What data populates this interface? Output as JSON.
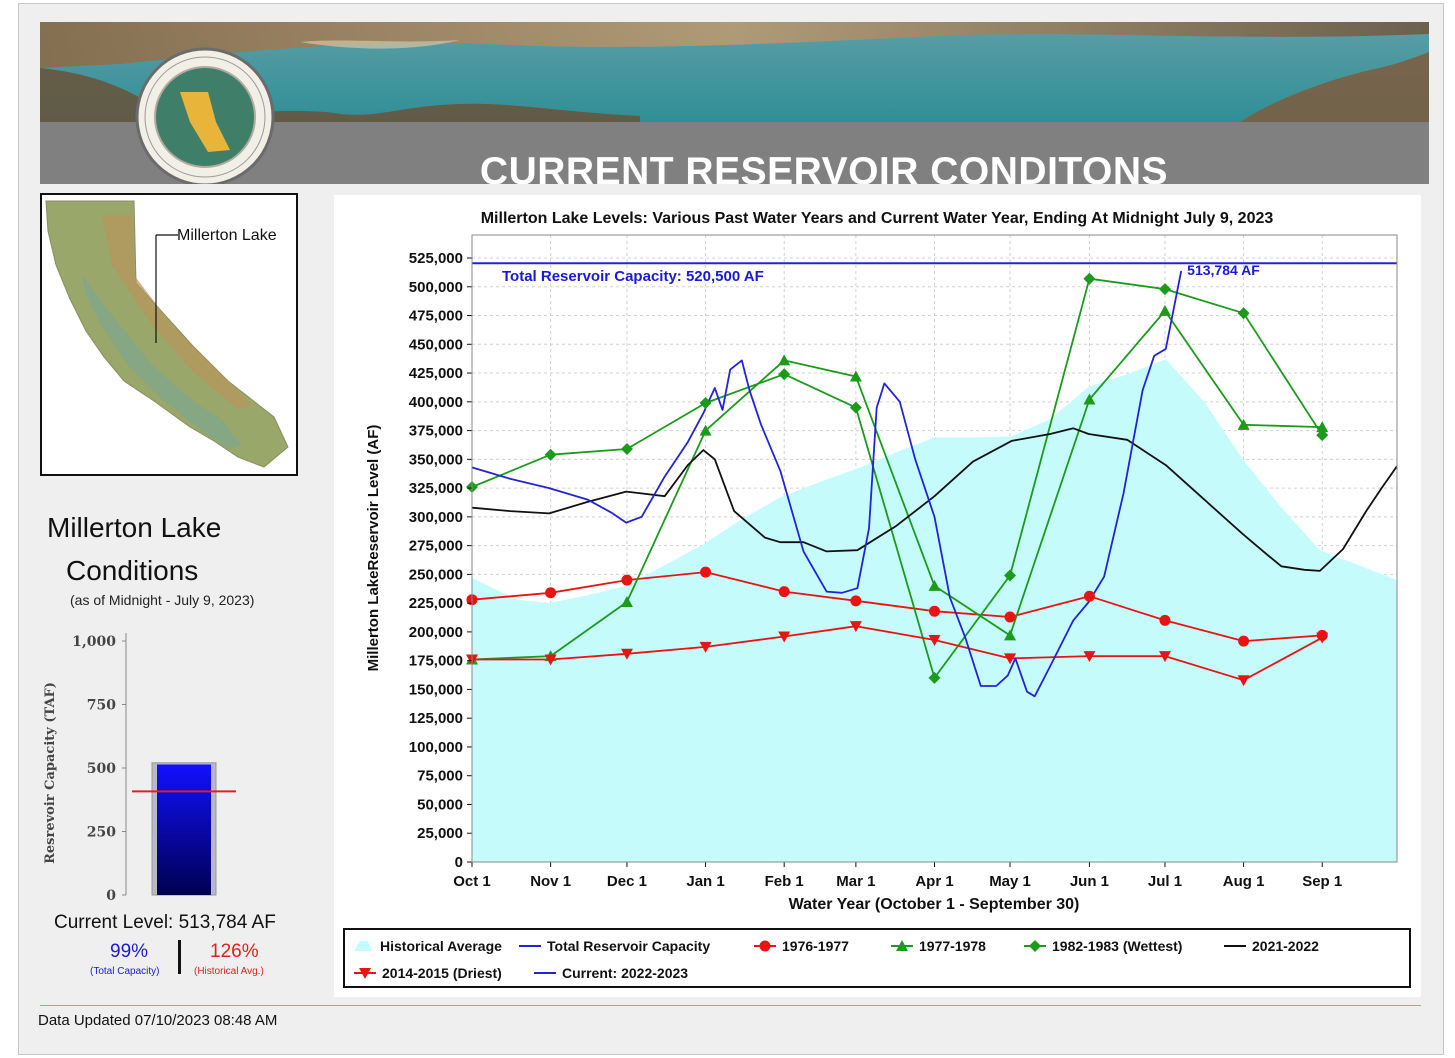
{
  "banner": {
    "title": "CURRENT RESERVOIR CONDITONS",
    "seal": "department-of-water-resources-seal"
  },
  "map": {
    "label": "Millerton Lake"
  },
  "conditions": {
    "title_line1": "Millerton Lake",
    "title_line2": "Conditions",
    "as_of": "(as of Midnight - July 9, 2023)",
    "gauge": {
      "ylabel": "Resrevoir Capacity (TAF)",
      "ticks": [
        "0",
        "250",
        "500",
        "750",
        "1,000"
      ],
      "tick_values": [
        0,
        250,
        500,
        750,
        1000
      ],
      "capacity_taf": 520.5,
      "current_taf": 513.784,
      "historical_avg_taf": 408
    },
    "current_level": "Current Level: 513,784 AF",
    "pct_total": "99%",
    "pct_total_label": "(Total Capacity)",
    "pct_hist": "126%",
    "pct_hist_label": "(Historical Avg.)"
  },
  "footer": {
    "updated": "Data Updated 07/10/2023 08:48 AM"
  },
  "chart_data": {
    "type": "line",
    "title": "Millerton Lake Levels: Various Past Water Years and Current Water Year, Ending At Midnight July 9, 2023",
    "xlabel": "Water Year (October 1 - September 30)",
    "ylabel": "Millerton LakeReservoir Level (AF)",
    "ylim": [
      0,
      545000
    ],
    "xlim": [
      0,
      12
    ],
    "x_tick_labels": [
      "Oct 1",
      "Nov 1",
      "Dec 1",
      "Jan 1",
      "Feb 1",
      "Mar 1",
      "Apr 1",
      "May 1",
      "Jun 1",
      "Jul 1",
      "Aug 1",
      "Sep 1"
    ],
    "x_tick_positions": [
      0,
      1.02,
      2.01,
      3.03,
      4.05,
      4.98,
      6.0,
      6.98,
      8.01,
      8.99,
      10.01,
      11.03
    ],
    "y_tick_labels": [
      "0",
      "25,000",
      "50,000",
      "75,000",
      "100,000",
      "125,000",
      "150,000",
      "175,000",
      "200,000",
      "225,000",
      "250,000",
      "275,000",
      "300,000",
      "325,000",
      "350,000",
      "375,000",
      "400,000",
      "425,000",
      "450,000",
      "475,000",
      "500,000",
      "525,000"
    ],
    "y_tick_values": [
      0,
      25000,
      50000,
      75000,
      100000,
      125000,
      150000,
      175000,
      200000,
      225000,
      250000,
      275000,
      300000,
      325000,
      350000,
      375000,
      400000,
      425000,
      450000,
      475000,
      500000,
      525000
    ],
    "grid": true,
    "legend_position": "bottom",
    "capacity": {
      "value": 520500,
      "label": "Total Reservoir Capacity: 520,500 AF"
    },
    "current_annotation": "513,784 AF",
    "series": [
      {
        "name": "Historical Average",
        "style": "area",
        "color": "#c6fbfb",
        "x": [
          0,
          0.3,
          0.6,
          1.0,
          1.5,
          2.0,
          2.5,
          3.0,
          3.5,
          4.0,
          4.5,
          5.0,
          5.5,
          6.0,
          6.5,
          7.0,
          7.5,
          8.0,
          8.5,
          9.0,
          9.5,
          10.0,
          10.5,
          11.0,
          11.5,
          12.0
        ],
        "y": [
          247000,
          237000,
          228000,
          225000,
          232000,
          240000,
          258000,
          276000,
          298000,
          317000,
          330000,
          342000,
          356000,
          369000,
          369000,
          370000,
          385000,
          413000,
          424000,
          437000,
          400000,
          350000,
          308000,
          271000,
          258000,
          245000
        ]
      },
      {
        "name": "Total Reservoir Capacity",
        "style": "line",
        "color": "#2323d6",
        "x": [
          0,
          12
        ],
        "y": [
          520500,
          520500
        ]
      },
      {
        "name": "1976-1977",
        "style": "line",
        "marker": "circle",
        "color": "#e81414",
        "x": [
          0,
          1.02,
          2.01,
          3.03,
          4.05,
          4.98,
          6.0,
          6.98,
          8.01,
          8.99,
          10.01,
          11.03
        ],
        "y": [
          228000,
          234000,
          245000,
          252000,
          235000,
          227000,
          218000,
          213000,
          231000,
          210000,
          192000,
          197000
        ]
      },
      {
        "name": "1977-1978",
        "style": "line",
        "marker": "triangle-up",
        "color": "#1c9a1c",
        "x": [
          0,
          1.02,
          2.01,
          3.03,
          4.05,
          4.98,
          6.0,
          6.98,
          8.01,
          8.99,
          10.01,
          11.03
        ],
        "y": [
          176000,
          179000,
          226000,
          375000,
          436000,
          422000,
          240000,
          197000,
          402000,
          479000,
          380000,
          378000
        ]
      },
      {
        "name": "1982-1983 (Wettest)",
        "style": "line",
        "marker": "diamond",
        "color": "#1c9a1c",
        "x": [
          0,
          1.02,
          2.01,
          3.03,
          4.05,
          4.98,
          6.0,
          6.98,
          8.01,
          8.99,
          10.01,
          11.03
        ],
        "y": [
          326000,
          354000,
          359000,
          399000,
          424000,
          395000,
          160000,
          249000,
          507000,
          498000,
          477000,
          371000
        ]
      },
      {
        "name": "2021-2022",
        "style": "line",
        "color": "#111111",
        "x": [
          0,
          0.5,
          1.0,
          1.5,
          2.0,
          2.5,
          2.8,
          3.0,
          3.15,
          3.4,
          3.8,
          4.0,
          4.3,
          4.6,
          5.0,
          5.5,
          6.0,
          6.5,
          7.0,
          7.5,
          7.8,
          8.0,
          8.5,
          9.0,
          9.5,
          10.0,
          10.3,
          10.5,
          10.8,
          11.0,
          11.3,
          11.6,
          11.8,
          12.0
        ],
        "y": [
          308000,
          305000,
          303000,
          313000,
          322000,
          318000,
          345000,
          358000,
          350000,
          305000,
          282000,
          278000,
          278000,
          270000,
          271000,
          292000,
          318000,
          348000,
          366000,
          372000,
          377000,
          372000,
          367000,
          345000,
          315000,
          285000,
          268000,
          257000,
          254000,
          253000,
          272000,
          305000,
          325000,
          344000
        ]
      },
      {
        "name": "2014-2015 (Driest)",
        "style": "line",
        "marker": "triangle-down",
        "color": "#e81414",
        "x": [
          0,
          1.02,
          2.01,
          3.03,
          4.05,
          4.98,
          6.0,
          6.98,
          8.01,
          8.99,
          10.01,
          11.03
        ],
        "y": [
          176000,
          176000,
          181000,
          187000,
          196000,
          205000,
          193000,
          177000,
          179000,
          179000,
          158000,
          195000
        ]
      },
      {
        "name": "Current: 2022-2023",
        "style": "line",
        "color": "#2323d6",
        "x": [
          0,
          0.5,
          1.0,
          1.5,
          1.8,
          2.0,
          2.2,
          2.5,
          2.8,
          3.0,
          3.15,
          3.25,
          3.35,
          3.5,
          3.6,
          3.75,
          4.0,
          4.3,
          4.6,
          4.8,
          5.0,
          5.15,
          5.25,
          5.35,
          5.55,
          5.75,
          6.0,
          6.2,
          6.4,
          6.6,
          6.8,
          6.95,
          7.05,
          7.2,
          7.3,
          7.5,
          7.8,
          8.0,
          8.2,
          8.45,
          8.7,
          8.85,
          9.0,
          9.2
        ],
        "y": [
          343000,
          333000,
          325000,
          315000,
          304000,
          295000,
          300000,
          335000,
          365000,
          390000,
          412000,
          393000,
          428000,
          436000,
          410000,
          380000,
          340000,
          270000,
          235000,
          234000,
          238000,
          290000,
          395000,
          416000,
          400000,
          350000,
          300000,
          230000,
          195000,
          153000,
          153000,
          162000,
          177000,
          148000,
          144000,
          170000,
          210000,
          226000,
          248000,
          320000,
          410000,
          440000,
          446000,
          513784
        ]
      }
    ]
  }
}
